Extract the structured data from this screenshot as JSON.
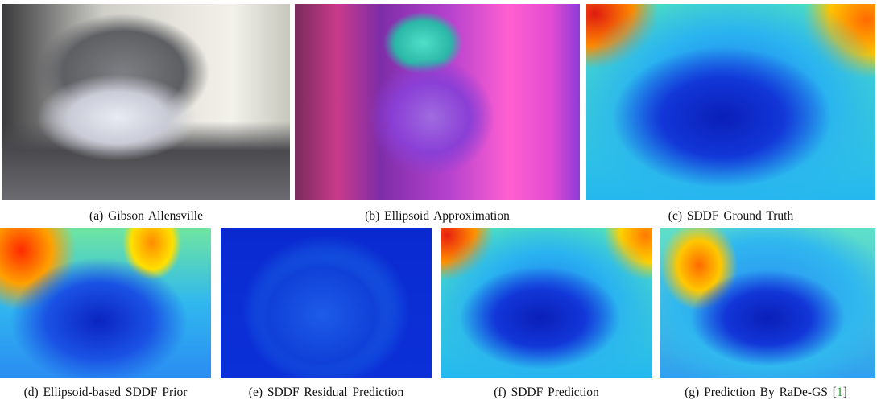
{
  "figure": {
    "panels": [
      {
        "label": "(a)",
        "caption": "Gibson Allensville"
      },
      {
        "label": "(b)",
        "caption": "Ellipsoid Approximation"
      },
      {
        "label": "(c)",
        "caption": "SDDF Ground Truth"
      },
      {
        "label": "(d)",
        "caption": "Ellipsoid-based SDDF Prior"
      },
      {
        "label": "(e)",
        "caption": "SDDF Residual Prediction"
      },
      {
        "label": "(f)",
        "caption": "SDDF Prediction"
      },
      {
        "label": "(g)",
        "caption": "Prediction By RaDe-GS",
        "citation": [
          "[",
          "1",
          "]"
        ]
      }
    ]
  }
}
